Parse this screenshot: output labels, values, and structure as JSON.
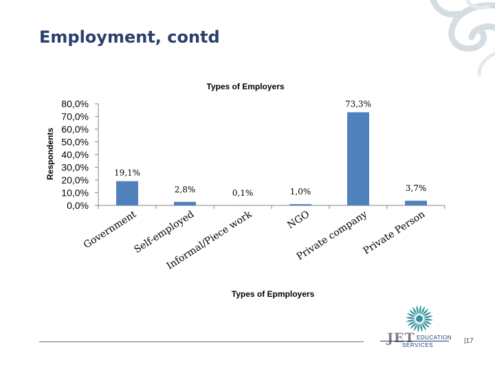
{
  "slide": {
    "title": "Employment, contd",
    "page_number": "17"
  },
  "logo": {
    "name": "JET",
    "line1": "EDUCATION",
    "line2": "SERVICES"
  },
  "colors": {
    "title": "#2a3f6c",
    "bar": "#4f81bd",
    "axis": "#868686"
  },
  "chart_data": {
    "type": "bar",
    "title": "Types of Employers",
    "xlabel": "Types of Epmployers",
    "ylabel": "Respondents",
    "ylim": [
      0,
      80
    ],
    "yticks": [
      0,
      10,
      20,
      30,
      40,
      50,
      60,
      70,
      80
    ],
    "ytick_labels": [
      "0,0%",
      "10,0%",
      "20,0%",
      "30,0%",
      "40,0%",
      "50,0%",
      "60,0%",
      "70,0%",
      "80,0%"
    ],
    "grid": false,
    "legend": "none",
    "categories": [
      "Government",
      "Self-employed",
      "Informal/Piece work",
      "NGO",
      "Private company",
      "Private Person"
    ],
    "values": [
      19.1,
      2.8,
      0.1,
      1.0,
      73.3,
      3.7
    ],
    "data_labels": [
      "19,1%",
      "2,8%",
      "0,1%",
      "1,0%",
      "73,3%",
      "3,7%"
    ]
  }
}
